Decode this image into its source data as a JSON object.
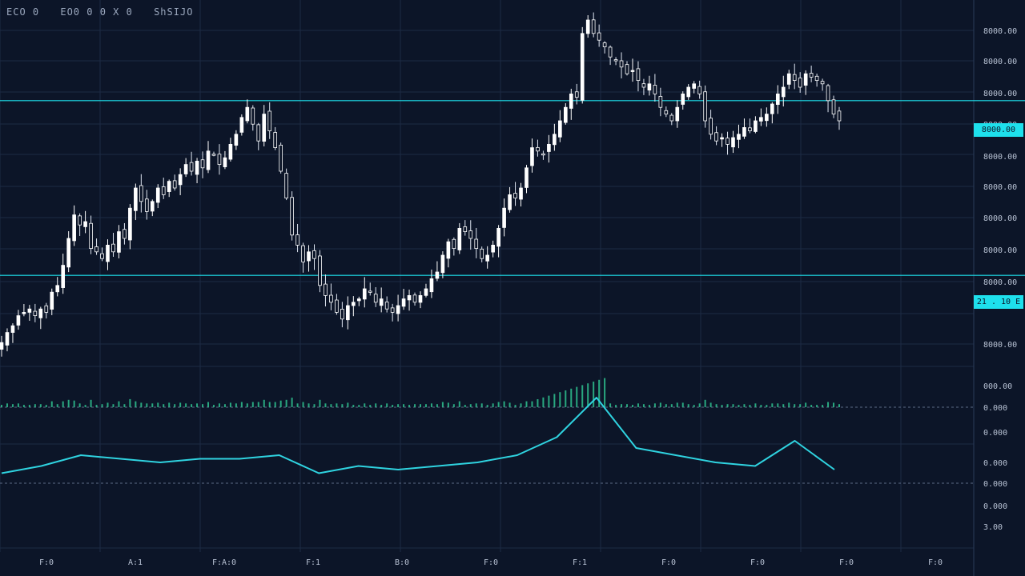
{
  "header": {
    "items": [
      "ECO 0",
      "EO0 0 0 X 0",
      "ShSIJO"
    ]
  },
  "colors": {
    "background": "#0c1528",
    "grid": "#1c2a44",
    "accent": "#1ee0ec",
    "candle_up": "#ffffff",
    "candle_down": "#dfe6f2",
    "volume": "#2fc28f",
    "oscillator": "#2fd3e0"
  },
  "chart_data": [
    {
      "type": "candlestick",
      "x_tick_labels": [
        "F:0",
        "A:1",
        "F:A:0",
        "F:1",
        "B:0",
        "F:0",
        "F:1",
        "F:0",
        "F:0",
        "F:0",
        "F:0"
      ],
      "y_tick_labels": [
        "8000.00",
        "8000.00",
        "8000.00",
        "8000.00",
        "8000.00",
        "8000.00",
        "8000.00",
        "8000.00",
        "8000.00",
        "8000.00"
      ],
      "ylim": [
        0,
        100
      ],
      "close": [
        4,
        7,
        9,
        12,
        13,
        14,
        12,
        14,
        13,
        19,
        21,
        27,
        35,
        42,
        39,
        40,
        32,
        31,
        29,
        33,
        31,
        37,
        35,
        44,
        50,
        46,
        43,
        46,
        50,
        48,
        52,
        50,
        54,
        57,
        55,
        58,
        56,
        61,
        60,
        57,
        59,
        63,
        66,
        71,
        74,
        69,
        64,
        72,
        67,
        62,
        55,
        47,
        36,
        33,
        28,
        31,
        29,
        21,
        18,
        16,
        13,
        11,
        15,
        16,
        17,
        20,
        19,
        16,
        17,
        14,
        13,
        15,
        17,
        18,
        16,
        18,
        20,
        23,
        25,
        30,
        34,
        32,
        38,
        37,
        35,
        32,
        29,
        30,
        33,
        38,
        44,
        48,
        47,
        50,
        56,
        62,
        61,
        60,
        63,
        66,
        70,
        74,
        78,
        77,
        96,
        100,
        96,
        94,
        92,
        89,
        88,
        86,
        84,
        85,
        82,
        80,
        81,
        78,
        74,
        72,
        70,
        74,
        78,
        80,
        81,
        78,
        70,
        66,
        64,
        65,
        63,
        65,
        66,
        68,
        67,
        70,
        71,
        72,
        75,
        78,
        80,
        84,
        82,
        80,
        84,
        83,
        82,
        81,
        76,
        72,
        70
      ],
      "horizontal_levels": [
        {
          "value": 76,
          "label": "8000.00"
        },
        {
          "value": 24,
          "label": "21 . 10 E"
        }
      ]
    },
    {
      "type": "bar",
      "name": "volume",
      "y_tick_labels": [
        "000.00",
        "0.000"
      ]
    },
    {
      "type": "line",
      "name": "oscillator",
      "x": [
        0,
        8,
        16,
        24,
        32,
        40,
        48,
        56,
        64,
        72,
        80,
        88,
        96,
        104,
        112,
        120,
        128,
        136,
        144,
        152,
        160,
        168
      ],
      "values": [
        3,
        5,
        8,
        7,
        6,
        7,
        7,
        8,
        3,
        5,
        4,
        5,
        6,
        8,
        13,
        24,
        10,
        8,
        6,
        5,
        12,
        4
      ],
      "y_tick_labels": [
        "0.000",
        "0.000",
        "0.000",
        "0.000",
        "3.00"
      ]
    }
  ]
}
